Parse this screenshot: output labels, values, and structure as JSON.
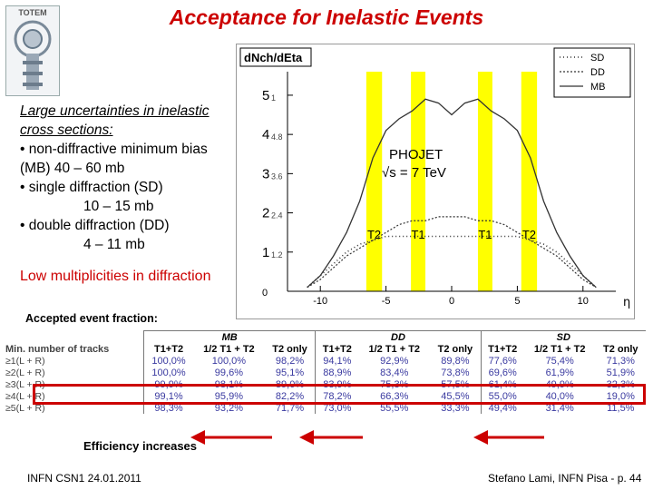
{
  "title": "Acceptance for Inelastic Events",
  "logo": {
    "text": "TOTEM"
  },
  "left_text": {
    "heading": "Large uncertainties in inelastic cross sections:",
    "items": [
      "• non-diffractive minimum bias (MB) 40 – 60 mb",
      "• single diffraction (SD)",
      "10 – 15 mb",
      "• double diffraction  (DD)",
      "4 – 11 mb"
    ],
    "red_note": "Low multiplicities in diffraction"
  },
  "plot": {
    "ylabel": "dNch/dEta",
    "legend": [
      "SD",
      "DD",
      "MB"
    ],
    "y_ticks": [
      "0",
      "1",
      "2",
      "3",
      "4",
      "5"
    ],
    "y_ticks_hw": [
      "1.2",
      "2.4",
      "3.6",
      "4.8",
      "1"
    ],
    "x_ticks": [
      "-10",
      "-5",
      "0",
      "5",
      "10"
    ],
    "x_label": "η",
    "annotation_line1": "PHOJET",
    "annotation_line2": "√s = 7 TeV",
    "det_labels": [
      "T2",
      "T1",
      "T1",
      "T2"
    ]
  },
  "chart_data": {
    "type": "line",
    "title": "dNch/dEta",
    "xlabel": "η",
    "ylabel": "dNch/dEta",
    "xlim": [
      -12.5,
      12.5
    ],
    "ylim": [
      0,
      5.6
    ],
    "series": [
      {
        "name": "MB",
        "x": [
          -11,
          -10,
          -9,
          -8,
          -7,
          -6,
          -5,
          -4,
          -3,
          -2,
          -1,
          0,
          1,
          2,
          3,
          4,
          5,
          6,
          7,
          8,
          9,
          10,
          11
        ],
        "values": [
          0.1,
          0.4,
          0.9,
          1.5,
          2.3,
          3.4,
          4.1,
          4.4,
          4.6,
          4.9,
          4.8,
          4.5,
          4.8,
          4.9,
          4.6,
          4.4,
          4.1,
          3.4,
          2.3,
          1.5,
          0.9,
          0.4,
          0.1
        ]
      },
      {
        "name": "DD",
        "x": [
          -11,
          -10,
          -9,
          -8,
          -7,
          -6,
          -5,
          -4,
          -3,
          -2,
          -1,
          0,
          1,
          2,
          3,
          4,
          5,
          6,
          7,
          8,
          9,
          10,
          11
        ],
        "values": [
          0.1,
          0.3,
          0.6,
          0.9,
          1.1,
          1.3,
          1.5,
          1.7,
          1.8,
          1.8,
          1.9,
          1.9,
          1.9,
          1.8,
          1.8,
          1.7,
          1.5,
          1.3,
          1.1,
          0.9,
          0.6,
          0.3,
          0.1
        ]
      },
      {
        "name": "SD",
        "x": [
          -11,
          -10,
          -9,
          -8,
          -7,
          -6,
          -5,
          -4,
          -3,
          -2,
          -1,
          0,
          1,
          2,
          3,
          4,
          5,
          6,
          7,
          8,
          9,
          10,
          11
        ],
        "values": [
          0.1,
          0.4,
          0.7,
          1.0,
          1.2,
          1.3,
          1.4,
          1.4,
          1.4,
          1.4,
          1.4,
          1.4,
          1.4,
          1.4,
          1.4,
          1.4,
          1.4,
          1.3,
          1.2,
          1.0,
          0.7,
          0.4,
          0.1
        ]
      }
    ],
    "bands": [
      {
        "label": "T2",
        "range": [
          -6.5,
          -5.3
        ]
      },
      {
        "label": "T1",
        "range": [
          -3.1,
          -2.0
        ]
      },
      {
        "label": "T1",
        "range": [
          2.0,
          3.1
        ]
      },
      {
        "label": "T2",
        "range": [
          5.3,
          6.5
        ]
      }
    ]
  },
  "accepted_label": "Accepted event fraction:",
  "table": {
    "groups": [
      "MB",
      "DD",
      "SD"
    ],
    "corner": "Min. number of tracks",
    "cols": [
      "T1+T2",
      "1/2 T1 + T2",
      "T2 only",
      "T1+T2",
      "1/2 T1 + T2",
      "T2 only",
      "T1+T2",
      "1/2 T1 + T2",
      "T2 only"
    ],
    "rows": [
      {
        "label": "≥1(L + R)",
        "cells": [
          "100,0%",
          "100,0%",
          "98,2%",
          "94,1%",
          "92,9%",
          "89,8%",
          "77,6%",
          "75,4%",
          "71,3%"
        ]
      },
      {
        "label": "≥2(L + R)",
        "cells": [
          "100,0%",
          "99,6%",
          "95,1%",
          "88,9%",
          "83,4%",
          "73,8%",
          "69,6%",
          "61,9%",
          "51,9%"
        ]
      },
      {
        "label": "≥3(L + R)",
        "cells": [
          "99,9%",
          "98,1%",
          "89,0%",
          "83,9%",
          "75,3%",
          "57,5%",
          "61,4%",
          "49,9%",
          "32,3%"
        ]
      },
      {
        "label": "≥4(L + R)",
        "cells": [
          "99,1%",
          "95,9%",
          "82,2%",
          "78,2%",
          "66,3%",
          "45,5%",
          "55,0%",
          "40,0%",
          "19,0%"
        ]
      },
      {
        "label": "≥5(L + R)",
        "cells": [
          "98,3%",
          "93,2%",
          "71,7%",
          "73,0%",
          "55,5%",
          "33,3%",
          "49,4%",
          "31,4%",
          "11,5%"
        ]
      }
    ]
  },
  "efficiency_label": "Efficiency increases",
  "footer": {
    "left": "INFN CSN1  24.01.2011",
    "right": "Stefano Lami, INFN Pisa  - p. 44"
  },
  "colors": {
    "title": "#cc0000",
    "band": "#ffff00",
    "arrow": "#cc0000",
    "table_values": "#3a3aa0"
  }
}
